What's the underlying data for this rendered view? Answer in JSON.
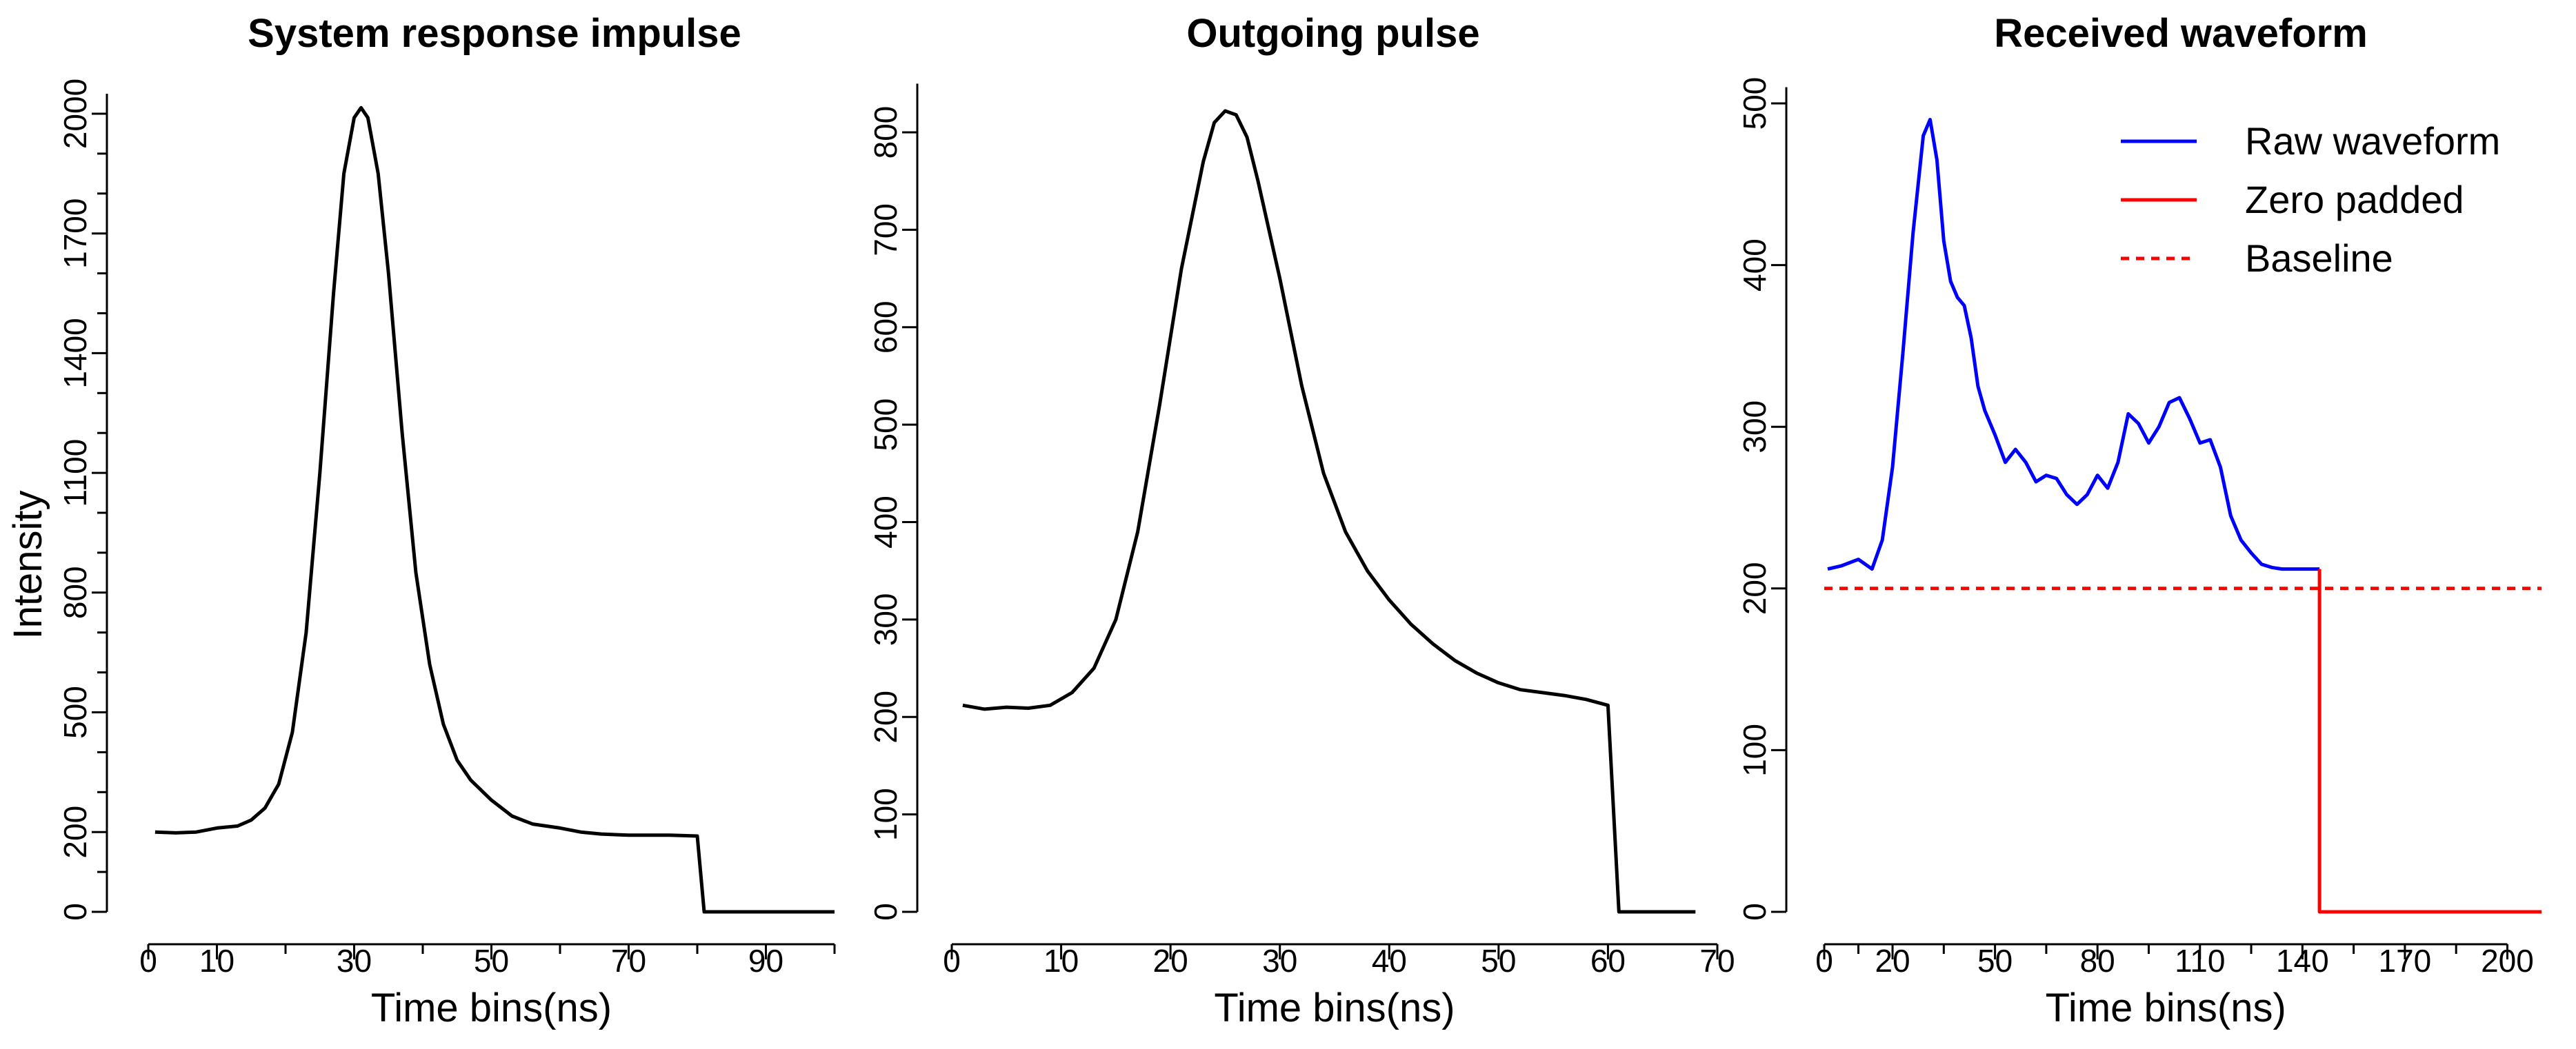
{
  "chart_data": [
    {
      "type": "line",
      "title": "System response impulse",
      "xlabel": "Time bins(ns)",
      "ylabel": "Intensity",
      "xlim": [
        0,
        100
      ],
      "ylim": [
        0,
        2050
      ],
      "x_ticks_major": [
        0,
        10,
        30,
        50,
        70,
        90
      ],
      "x_ticks_minor": [
        20,
        40,
        60,
        80,
        100
      ],
      "y_ticks_major": [
        0,
        200,
        500,
        800,
        1100,
        1400,
        1700,
        2000
      ],
      "y_ticks_minor": [
        100,
        300,
        400,
        600,
        700,
        900,
        1000,
        1200,
        1300,
        1500,
        1600,
        1800,
        1900
      ],
      "y_tick_rotation": -90,
      "series": [
        {
          "color": "#000000",
          "x": [
            1,
            4,
            7,
            10,
            13,
            15,
            17,
            19,
            21,
            23,
            25,
            27,
            28.5,
            30,
            31,
            32,
            33.5,
            35,
            37,
            39,
            41,
            43,
            45,
            47,
            50,
            53,
            56,
            60,
            63,
            66,
            70,
            73,
            76,
            80,
            81,
            85,
            90,
            95,
            100
          ],
          "y": [
            200,
            198,
            200,
            210,
            215,
            230,
            260,
            320,
            450,
            700,
            1100,
            1550,
            1850,
            1990,
            2015,
            1990,
            1850,
            1600,
            1200,
            850,
            620,
            470,
            380,
            330,
            280,
            240,
            220,
            210,
            200,
            195,
            192,
            192,
            192,
            190,
            0,
            0,
            0,
            0,
            0
          ]
        }
      ]
    },
    {
      "type": "line",
      "title": "Outgoing pulse",
      "xlabel": "Time bins(ns)",
      "ylabel": "",
      "xlim": [
        0,
        70
      ],
      "ylim": [
        0,
        850
      ],
      "x_ticks_major": [
        0,
        10,
        20,
        30,
        40,
        50,
        60,
        70
      ],
      "y_ticks_major": [
        0,
        100,
        200,
        300,
        400,
        500,
        600,
        700,
        800
      ],
      "series": [
        {
          "color": "#000000",
          "x": [
            1,
            3,
            5,
            7,
            9,
            11,
            13,
            15,
            17,
            19,
            21,
            23,
            24,
            25,
            26,
            27,
            28,
            30,
            32,
            34,
            36,
            38,
            40,
            42,
            44,
            46,
            48,
            50,
            52,
            54,
            56,
            58,
            60,
            61,
            63,
            66,
            68
          ],
          "y": [
            212,
            208,
            210,
            209,
            212,
            225,
            250,
            300,
            390,
            520,
            660,
            770,
            810,
            822,
            818,
            795,
            750,
            650,
            540,
            450,
            390,
            350,
            320,
            295,
            275,
            258,
            245,
            235,
            228,
            225,
            222,
            218,
            212,
            0,
            0,
            0,
            0
          ]
        }
      ]
    },
    {
      "type": "line",
      "title": "Received waveform",
      "xlabel": "Time bins(ns)",
      "ylabel": "",
      "xlim": [
        0,
        210
      ],
      "ylim": [
        0,
        510
      ],
      "x_ticks_major": [
        0,
        20,
        50,
        80,
        110,
        140,
        170,
        200
      ],
      "x_ticks_minor": [
        10,
        35,
        65,
        95,
        125,
        155,
        185
      ],
      "y_ticks_major": [
        0,
        100,
        200,
        300,
        400,
        500
      ],
      "legend_position": "top-right",
      "series": [
        {
          "name": "Raw waveform",
          "color": "#0000ff",
          "dash": "solid",
          "x": [
            1,
            5,
            10,
            14,
            17,
            20,
            23,
            26,
            29,
            31,
            33,
            35,
            37,
            39,
            41,
            43,
            45,
            47,
            50,
            53,
            56,
            59,
            62,
            65,
            68,
            71,
            74,
            77,
            80,
            83,
            86,
            89,
            92,
            95,
            98,
            101,
            104,
            107,
            110,
            113,
            116,
            119,
            122,
            125,
            128,
            131,
            134,
            137,
            140,
            143,
            145
          ],
          "y": [
            212,
            214,
            218,
            212,
            230,
            275,
            345,
            420,
            480,
            490,
            465,
            415,
            390,
            380,
            375,
            355,
            325,
            310,
            295,
            278,
            286,
            278,
            266,
            270,
            268,
            258,
            252,
            258,
            270,
            262,
            278,
            308,
            302,
            290,
            300,
            315,
            318,
            305,
            290,
            292,
            275,
            245,
            230,
            222,
            215,
            213,
            212,
            212,
            212,
            212,
            212
          ]
        },
        {
          "name": "Zero padded",
          "color": "#ff0000",
          "dash": "solid",
          "x": [
            145,
            145,
            210
          ],
          "y": [
            212,
            0,
            0
          ]
        },
        {
          "name": "Baseline",
          "color": "#ff0000",
          "dash": "dotted",
          "x": [
            0,
            210
          ],
          "y": [
            200,
            200
          ]
        }
      ]
    }
  ]
}
